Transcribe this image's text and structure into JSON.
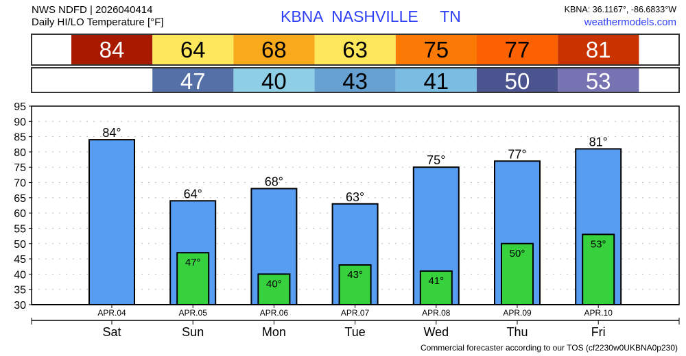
{
  "header": {
    "source": "NWS NDFD | 2026040414",
    "subtitle": "Daily HI/LO Temperature [°F]",
    "station": "KBNA  NASHVILLE     TN",
    "coords": "KBNA: 36.1167°, -86.6833°W",
    "site": "weathermodels.com"
  },
  "footer": "Commercial forecaster according to our TOS (cf2230w0UKBNA0p230)",
  "colors": {
    "hi_bar": "#579ef2",
    "lo_bar": "#36d13c",
    "accent": "#2f3ff5"
  },
  "strip": {
    "hi_colors": [
      "#a81a00",
      "#fde85c",
      "#f9aa1c",
      "#fde85c",
      "#fb7a05",
      "#fb6100",
      "#c93300"
    ],
    "hi_text": [
      "#fff",
      "#000",
      "#000",
      "#000",
      "#000",
      "#000",
      "#fff"
    ],
    "lo_colors": [
      "#5570a6",
      "#8fcfe6",
      "#66a1d1",
      "#7bbde2",
      "#4c5490",
      "#7773b3"
    ],
    "lo_text": [
      "#fff",
      "#000",
      "#000",
      "#000",
      "#fff",
      "#fff"
    ]
  },
  "chart_data": {
    "type": "bar",
    "title": "Daily HI/LO Temperature [°F]",
    "categories": [
      "APR.04",
      "APR.05",
      "APR.06",
      "APR.07",
      "APR.08",
      "APR.09",
      "APR.10"
    ],
    "days": [
      "Sat",
      "Sun",
      "Mon",
      "Tue",
      "Wed",
      "Thu",
      "Fri"
    ],
    "series": [
      {
        "name": "HI",
        "values": [
          84,
          64,
          68,
          63,
          75,
          77,
          81
        ]
      },
      {
        "name": "LO",
        "values": [
          null,
          47,
          40,
          43,
          41,
          50,
          53
        ]
      }
    ],
    "hi_labels": [
      "84°",
      "64°",
      "68°",
      "63°",
      "75°",
      "77°",
      "81°"
    ],
    "lo_labels": [
      "",
      "47°",
      "40°",
      "43°",
      "41°",
      "50°",
      "53°"
    ],
    "hi_strip": [
      "84",
      "64",
      "68",
      "63",
      "75",
      "77",
      "81"
    ],
    "lo_strip": [
      "",
      "47",
      "40",
      "43",
      "41",
      "50",
      "53"
    ],
    "yticks": [
      "30",
      "35",
      "40",
      "45",
      "50",
      "55",
      "60",
      "65",
      "70",
      "75",
      "80",
      "85",
      "90",
      "95"
    ],
    "ylim": [
      30,
      95
    ],
    "grid": true
  }
}
